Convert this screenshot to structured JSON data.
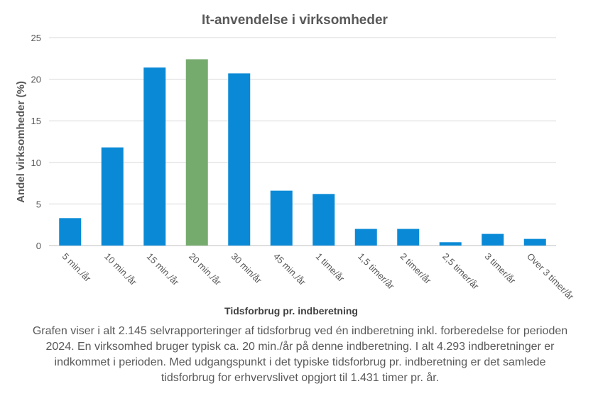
{
  "chart_data": {
    "type": "bar",
    "title": "It-anvendelse  i virksomheder",
    "xlabel": "Tidsforbrug pr. indberetning",
    "ylabel": "Andel virksomheder  (%)",
    "ylim": [
      0,
      25
    ],
    "yticks": [
      "0",
      "5",
      "10",
      "15",
      "20",
      "25"
    ],
    "grid": true,
    "categories": [
      "5 min./år",
      "10 min./år",
      "15 min./år",
      "20 min./år",
      "30 min/år",
      "45 min./år",
      "1 time/år",
      "1,5 timer/år",
      "2 timer/år",
      "2,5 timer/år",
      "3 timer/år",
      "Over 3 timer/år"
    ],
    "values": [
      3.3,
      11.8,
      21.4,
      22.4,
      20.7,
      6.6,
      6.2,
      2.0,
      2.0,
      0.4,
      1.4,
      0.8
    ],
    "highlight_index": 3,
    "colors": {
      "bar": "#0a8ad6",
      "highlight": "#76ab6e",
      "grid": "#d9d9d9",
      "text": "#595959"
    }
  },
  "caption": "Grafen viser i alt 2.145 selvrapporteringer af tidsforbrug ved én indberetning inkl. forberedelse for perioden 2024. En virksomhed bruger typisk ca. 20 min./år på denne indberetning.  I alt 4.293 indberetninger er indkommet i perioden. Med udgangspunkt i det typiske tidsforbrug pr. indberetning er det samlede tidsforbrug for erhvervslivet opgjort til 1.431 timer pr. år."
}
